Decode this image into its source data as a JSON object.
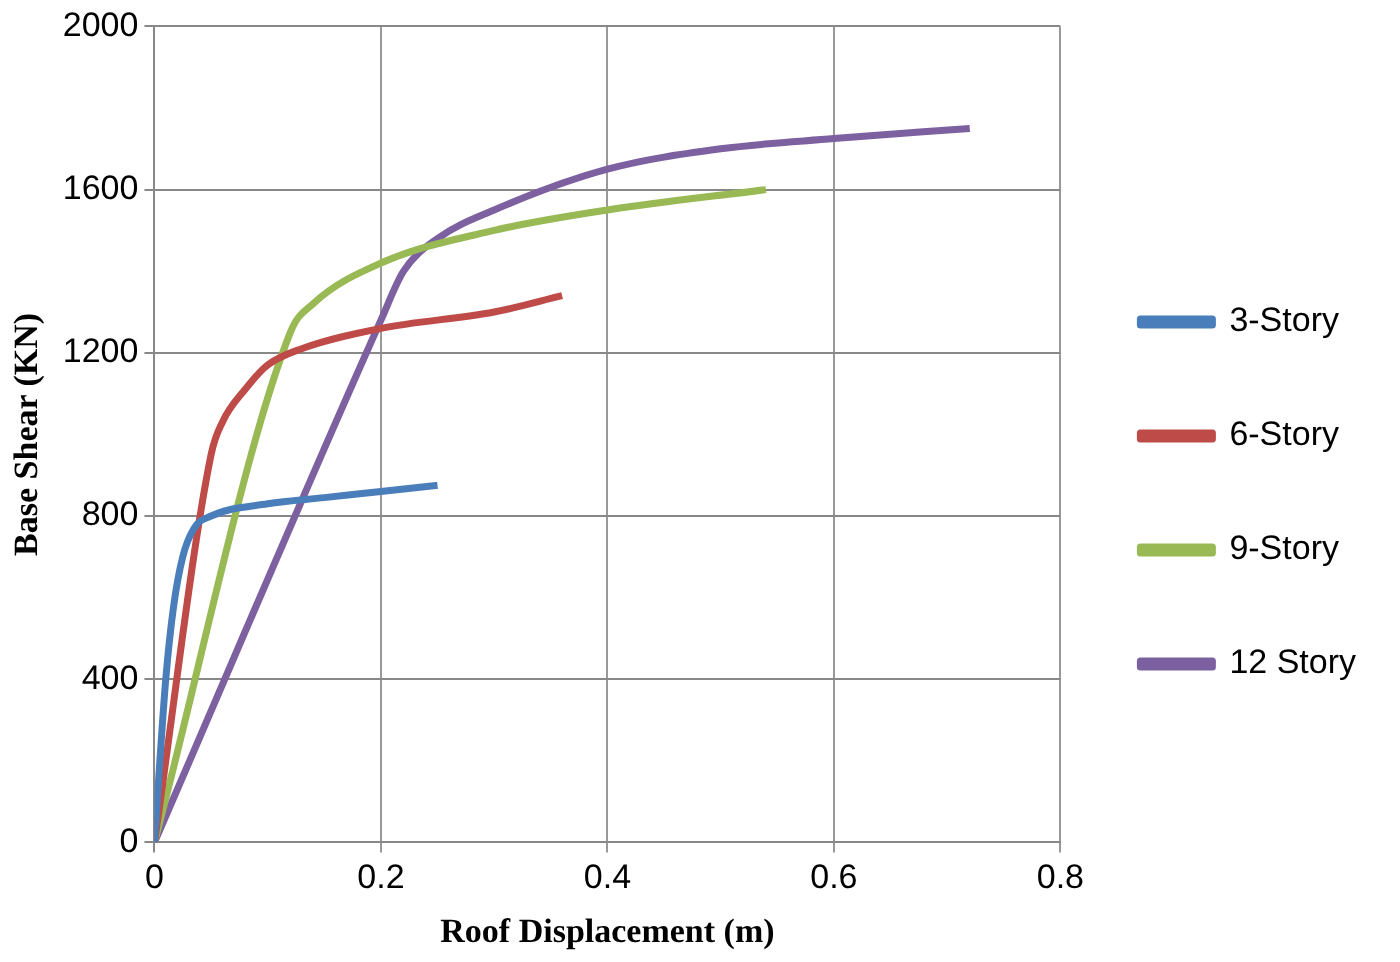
{
  "chart_data": {
    "type": "line",
    "xlabel": "Roof Displacement (m)",
    "ylabel": "Base Shear (KN)",
    "xlim": [
      0,
      0.8
    ],
    "xticks": [
      0,
      0.2,
      0.4,
      0.6,
      0.8
    ],
    "ylim": [
      0,
      2000
    ],
    "yticks": [
      0,
      400,
      800,
      1200,
      1600,
      2000
    ],
    "grid": true,
    "legend": "right",
    "marker": "none",
    "line_style": "solid",
    "series": [
      {
        "name": "3-Story",
        "color": "#4a7ebb",
        "x": [
          0,
          0.01,
          0.017,
          0.025,
          0.035,
          0.05,
          0.1,
          0.15,
          0.2,
          0.25
        ],
        "values": [
          0,
          400,
          580,
          700,
          770,
          800,
          830,
          845,
          860,
          875
        ]
      },
      {
        "name": "6-Story",
        "color": "#be4b48",
        "x": [
          0,
          0.05,
          0.06,
          0.08,
          0.1,
          0.13,
          0.2,
          0.3,
          0.36
        ],
        "values": [
          0,
          950,
          1030,
          1110,
          1170,
          1210,
          1260,
          1300,
          1340
        ]
      },
      {
        "name": "9-Story",
        "color": "#98b954",
        "x": [
          0,
          0.12,
          0.14,
          0.2,
          0.3,
          0.4,
          0.54
        ],
        "values": [
          0,
          1250,
          1320,
          1420,
          1500,
          1550,
          1600
        ]
      },
      {
        "name": "12 Story",
        "color": "#7d60a0",
        "x": [
          0,
          0.2,
          0.22,
          0.25,
          0.3,
          0.4,
          0.5,
          0.6,
          0.72
        ],
        "values": [
          0,
          1280,
          1400,
          1480,
          1550,
          1650,
          1700,
          1725,
          1750
        ]
      }
    ]
  }
}
